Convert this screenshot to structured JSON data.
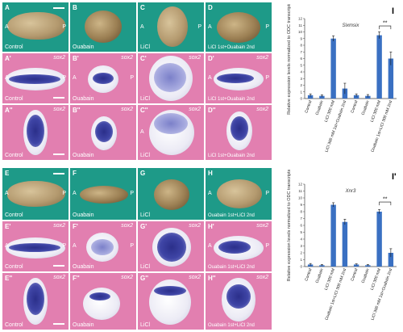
{
  "figure": {
    "panels_top": [
      {
        "id": "A",
        "label": "A",
        "condition": "Control",
        "color": "teal",
        "axis_a": "A",
        "axis_p": "P",
        "gene": ""
      },
      {
        "id": "B",
        "label": "B",
        "condition": "Ouabain",
        "color": "teal",
        "axis_a": "",
        "axis_p": "",
        "gene": ""
      },
      {
        "id": "C",
        "label": "C",
        "condition": "LiCl",
        "color": "teal",
        "axis_a": "A",
        "axis_p": "P",
        "gene": ""
      },
      {
        "id": "D",
        "label": "D",
        "condition": "LiCl 1st+Ouabain 2nd",
        "color": "teal",
        "axis_a": "A",
        "axis_p": "P",
        "gene": ""
      },
      {
        "id": "A1",
        "label": "A'",
        "condition": "Control",
        "color": "pink",
        "axis_a": "A",
        "axis_p": "P",
        "gene": "sox2"
      },
      {
        "id": "B1",
        "label": "B'",
        "condition": "Ouabain",
        "color": "pink",
        "axis_a": "A",
        "axis_p": "P",
        "gene": "sox2"
      },
      {
        "id": "C1",
        "label": "C'",
        "condition": "LiCl",
        "color": "pink",
        "axis_a": "",
        "axis_p": "",
        "gene": "sox2"
      },
      {
        "id": "D1",
        "label": "D'",
        "condition": "LiCl 1st+Ouabain 2nd",
        "color": "pink",
        "axis_a": "A",
        "axis_p": "P",
        "gene": "sox2"
      },
      {
        "id": "A2",
        "label": "A''",
        "condition": "Control",
        "color": "pink",
        "axis_a": "",
        "axis_p": "",
        "gene": "sox2"
      },
      {
        "id": "B2",
        "label": "B''",
        "condition": "Ouabain",
        "color": "pink",
        "axis_a": "",
        "axis_p": "",
        "gene": "sox2"
      },
      {
        "id": "C2",
        "label": "C''",
        "condition": "LiCl",
        "color": "pink",
        "axis_a": "A",
        "axis_p": "",
        "gene": "sox2"
      },
      {
        "id": "D2",
        "label": "D''",
        "condition": "LiCl 1st+Ouabain 2nd",
        "color": "pink",
        "axis_a": "",
        "axis_p": "",
        "gene": "sox2"
      }
    ],
    "panels_bottom": [
      {
        "id": "E",
        "label": "E",
        "condition": "Control",
        "color": "teal",
        "axis_a": "A",
        "axis_p": "P",
        "gene": ""
      },
      {
        "id": "F",
        "label": "F",
        "condition": "Ouabain",
        "color": "teal",
        "axis_a": "A",
        "axis_p": "P",
        "gene": ""
      },
      {
        "id": "G",
        "label": "G",
        "condition": "LiCl",
        "color": "teal",
        "axis_a": "",
        "axis_p": "",
        "gene": ""
      },
      {
        "id": "H",
        "label": "H",
        "condition": "Ouabain 1st+LiCl 2nd",
        "color": "teal",
        "axis_a": "A",
        "axis_p": "P",
        "gene": ""
      },
      {
        "id": "E1",
        "label": "E'",
        "condition": "Control",
        "color": "pink",
        "axis_a": "A",
        "axis_p": "P",
        "gene": "sox2"
      },
      {
        "id": "F1",
        "label": "F'",
        "condition": "Ouabain",
        "color": "pink",
        "axis_a": "A",
        "axis_p": "P",
        "gene": "sox2"
      },
      {
        "id": "G1",
        "label": "G'",
        "condition": "LiCl",
        "color": "pink",
        "axis_a": "",
        "axis_p": "",
        "gene": "sox2"
      },
      {
        "id": "H1",
        "label": "H'",
        "condition": "Ouabain 1st+LiCl 2nd",
        "color": "pink",
        "axis_a": "A",
        "axis_p": "P",
        "gene": "sox2"
      },
      {
        "id": "E2",
        "label": "E''",
        "condition": "Control",
        "color": "pink",
        "axis_a": "",
        "axis_p": "",
        "gene": "sox2"
      },
      {
        "id": "F2",
        "label": "F''",
        "condition": "Ouabain",
        "color": "pink",
        "axis_a": "",
        "axis_p": "",
        "gene": "sox2"
      },
      {
        "id": "G2",
        "label": "G''",
        "condition": "LiCl",
        "color": "pink",
        "axis_a": "",
        "axis_p": "",
        "gene": "sox2"
      },
      {
        "id": "H2",
        "label": "H''",
        "condition": "Ouabain 1st+LiCl 2nd",
        "color": "pink",
        "axis_a": "",
        "axis_p": "",
        "gene": "sox2"
      }
    ]
  },
  "chart_data": [
    {
      "type": "bar",
      "panel_label": "I",
      "title": "Sixmsix",
      "ylabel": "Relative expression levels normalized to ODC transcripts",
      "ylim": [
        0,
        12
      ],
      "yticks": [
        0,
        1,
        2,
        3,
        4,
        5,
        6,
        7,
        8,
        9,
        10,
        11,
        12
      ],
      "categories": [
        "Control",
        "Ouabain",
        "LiCl 300 mM",
        "LiCl 300 mM 1st+Ouabain 2nd",
        "Control",
        "Ouabain",
        "LiCl 300 mM",
        "Ouabain 1st+LiCl 300 mM 2nd"
      ],
      "values": [
        0.5,
        0.4,
        9.0,
        1.5,
        0.5,
        0.4,
        9.5,
        6.0
      ],
      "errors": [
        0.2,
        0.15,
        0.4,
        0.8,
        0.2,
        0.2,
        0.5,
        1.0
      ],
      "significance": "**",
      "bar_color": "#3a70c2",
      "grid": false,
      "legend": "none"
    },
    {
      "type": "bar",
      "panel_label": "I'",
      "title": "Xnr3",
      "ylabel": "Relative expression levels normalized to ODC transcripts",
      "ylim": [
        0,
        12
      ],
      "yticks": [
        0,
        1,
        2,
        3,
        4,
        5,
        6,
        7,
        8,
        9,
        10,
        11,
        12
      ],
      "categories": [
        "Control",
        "Ouabain",
        "LiCl 300 mM",
        "Ouabain 1st+LiCl 300 mM 2nd",
        "Control",
        "Ouabain",
        "LiCl 300 mM",
        "LiCl 300 mM 1st+Ouabain 2nd"
      ],
      "values": [
        0.3,
        0.2,
        9.0,
        6.5,
        0.3,
        0.2,
        8.0,
        2.0
      ],
      "errors": [
        0.15,
        0.1,
        0.3,
        0.4,
        0.1,
        0.1,
        0.3,
        0.6
      ],
      "significance": "**",
      "bar_color": "#3a70c2",
      "grid": false,
      "legend": "none"
    }
  ]
}
